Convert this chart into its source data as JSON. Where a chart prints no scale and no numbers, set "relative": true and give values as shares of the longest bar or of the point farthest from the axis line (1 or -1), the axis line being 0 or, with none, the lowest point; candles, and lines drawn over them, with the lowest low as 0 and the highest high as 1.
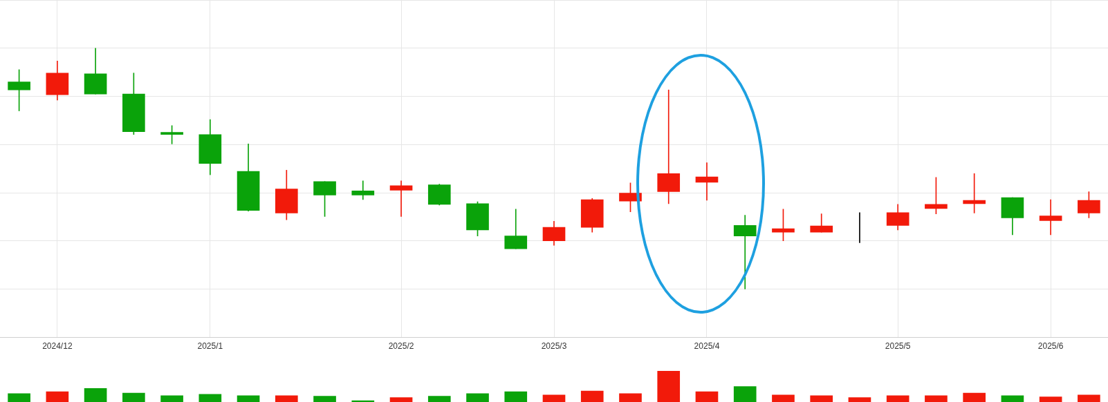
{
  "chart_data": [
    {
      "type": "candlestick",
      "relative": true,
      "grid": true,
      "categories": [
        null,
        "2024/12",
        null,
        null,
        null,
        "2025/1",
        null,
        null,
        null,
        null,
        "2025/2",
        null,
        null,
        null,
        "2025/3",
        null,
        null,
        null,
        "2025/4",
        null,
        null,
        null,
        null,
        "2025/5",
        null,
        null,
        null,
        "2025/6",
        null
      ],
      "ohlc": [
        [
          0.86,
          0.911,
          0.74,
          0.827
        ],
        [
          0.807,
          0.947,
          0.785,
          0.897
        ],
        [
          0.894,
          1,
          0.81,
          0.81
        ],
        [
          0.81,
          0.897,
          0.642,
          0.654
        ],
        [
          0.651,
          0.679,
          0.603,
          0.642
        ],
        [
          0.642,
          0.704,
          0.475,
          0.522
        ],
        [
          0.489,
          0.603,
          0.324,
          0.327
        ],
        [
          0.316,
          0.494,
          0.288,
          0.416
        ],
        [
          0.447,
          0.447,
          0.302,
          0.391
        ],
        [
          0.408,
          0.45,
          0.372,
          0.391
        ],
        [
          0.411,
          0.45,
          0.302,
          0.43
        ],
        [
          0.433,
          0.436,
          0.349,
          0.352
        ],
        [
          0.355,
          0.363,
          0.221,
          0.246
        ],
        [
          0.221,
          0.332,
          0.168,
          0.168
        ],
        [
          0.201,
          0.282,
          0.182,
          0.257
        ],
        [
          0.257,
          0.377,
          0.237,
          0.372
        ],
        [
          0.366,
          0.441,
          0.321,
          0.399
        ],
        [
          0.405,
          0.827,
          0.355,
          0.48
        ],
        [
          0.444,
          0.525,
          0.369,
          0.466
        ],
        [
          0.265,
          0.307,
          0,
          0.221
        ],
        [
          0.237,
          0.332,
          0.201,
          0.251
        ],
        [
          0.237,
          0.313,
          0.237,
          0.263
        ],
        [
          0.254,
          0.318,
          0.193,
          0.254
        ],
        [
          0.265,
          0.352,
          0.246,
          0.318
        ],
        [
          0.335,
          0.464,
          0.313,
          0.352
        ],
        [
          0.355,
          0.48,
          0.316,
          0.369
        ],
        [
          0.38,
          0.38,
          0.226,
          0.296
        ],
        [
          0.285,
          0.372,
          0.226,
          0.304
        ],
        [
          0.316,
          0.405,
          0.296,
          0.369
        ]
      ],
      "colors": [
        "#0aa30a",
        "#f21a0a",
        "#0aa30a",
        "#0aa30a",
        "#0aa30a",
        "#0aa30a",
        "#0aa30a",
        "#f21a0a",
        "#0aa30a",
        "#0aa30a",
        "#f21a0a",
        "#0aa30a",
        "#0aa30a",
        "#0aa30a",
        "#f21a0a",
        "#f21a0a",
        "#f21a0a",
        "#f21a0a",
        "#f21a0a",
        "#0aa30a",
        "#f21a0a",
        "#f21a0a",
        "#000000",
        "#f21a0a",
        "#f21a0a",
        "#f21a0a",
        "#0aa30a",
        "#f21a0a",
        "#f21a0a"
      ]
    },
    {
      "type": "bar",
      "relative": true,
      "categories": [
        null,
        null,
        null,
        null,
        null,
        null,
        null,
        null,
        null,
        null,
        null,
        null,
        null,
        null,
        null,
        null,
        null,
        null,
        null,
        null,
        null,
        null,
        null,
        null,
        null,
        null,
        null,
        null,
        null
      ],
      "values": [
        0.271,
        0.333,
        0.438,
        0.292,
        0.208,
        0.25,
        0.208,
        0.208,
        0.188,
        0.042,
        0.146,
        0.188,
        0.271,
        0.333,
        0.229,
        0.354,
        0.271,
        1,
        0.333,
        0.5,
        0.229,
        0.208,
        0.146,
        0.208,
        0.208,
        0.292,
        0.208,
        0.167,
        0.229
      ],
      "colors": [
        "#0aa30a",
        "#f21a0a",
        "#0aa30a",
        "#0aa30a",
        "#0aa30a",
        "#0aa30a",
        "#0aa30a",
        "#f21a0a",
        "#0aa30a",
        "#0aa30a",
        "#f21a0a",
        "#0aa30a",
        "#0aa30a",
        "#0aa30a",
        "#f21a0a",
        "#f21a0a",
        "#f21a0a",
        "#f21a0a",
        "#f21a0a",
        "#0aa30a",
        "#f21a0a",
        "#f21a0a",
        "#f21a0a",
        "#f21a0a",
        "#f21a0a",
        "#f21a0a",
        "#0aa30a",
        "#f21a0a",
        "#f21a0a"
      ]
    }
  ]
}
